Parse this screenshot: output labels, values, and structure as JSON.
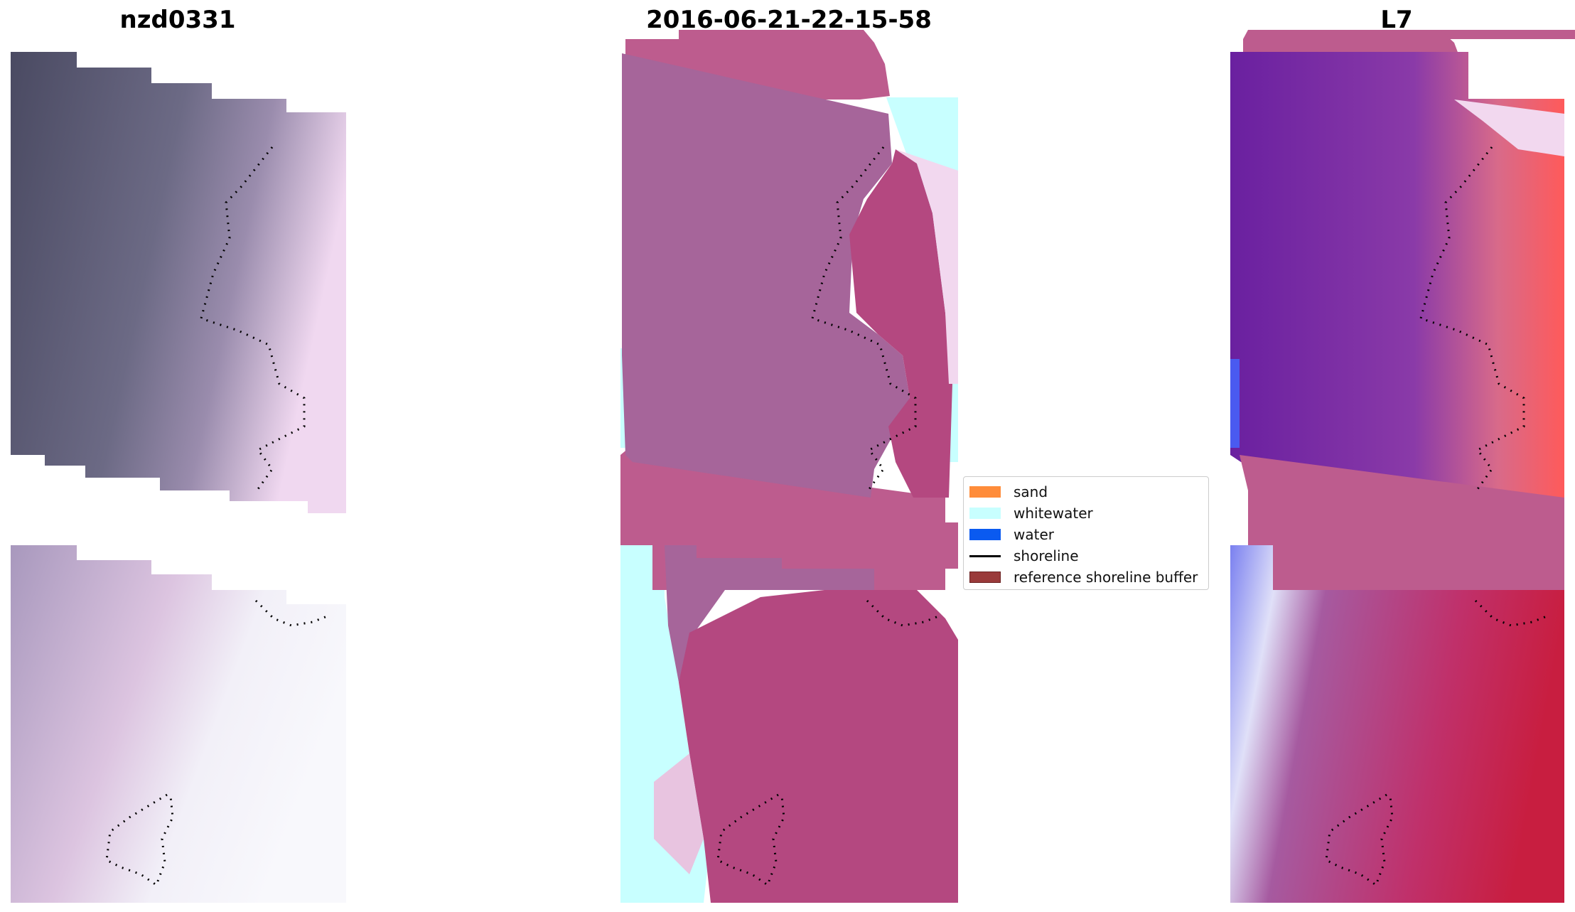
{
  "panels": [
    {
      "title": "nzd0331"
    },
    {
      "title": "2016-06-21-22-15-58"
    },
    {
      "title": "L7"
    }
  ],
  "legend": {
    "items": [
      {
        "label": "sand",
        "color": "#ff8c3a",
        "type": "patch"
      },
      {
        "label": "whitewater",
        "color": "#c8ffff",
        "type": "patch"
      },
      {
        "label": "water",
        "color": "#0a5af0",
        "type": "patch"
      },
      {
        "label": "shoreline",
        "color": "#000000",
        "type": "line"
      },
      {
        "label": "reference shoreline buffer",
        "color": "#9a3a3a",
        "type": "patch"
      }
    ]
  }
}
